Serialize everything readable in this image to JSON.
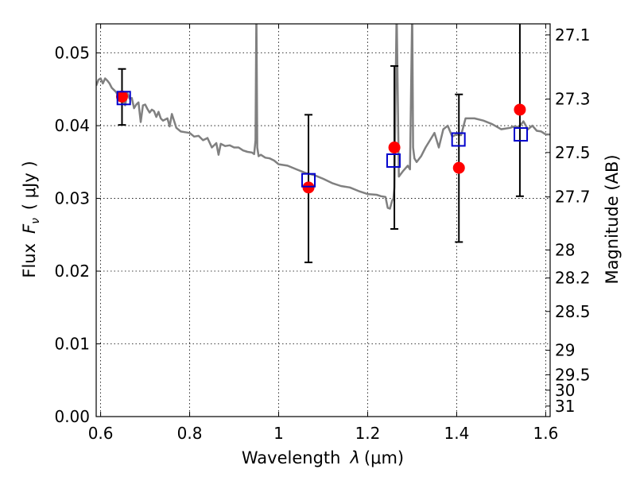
{
  "chart_data": {
    "type": "scatter",
    "xlabel": {
      "text": "Wavelength",
      "symbol": "λ",
      "unit": "(μm)"
    },
    "ylabel": {
      "text": "Flux",
      "symbol": "F",
      "subscript": "ν",
      "unit": "( μJy )"
    },
    "y2label": "Magnitude (AB)",
    "xlim": [
      0.59,
      1.61
    ],
    "ylim": [
      0.0,
      0.054
    ],
    "xticks": [
      0.6,
      0.8,
      1.0,
      1.2,
      1.4,
      1.6
    ],
    "xtick_labels": [
      "0.6",
      "0.8",
      "1",
      "1.2",
      "1.4",
      "1.6"
    ],
    "yticks": [
      0.0,
      0.01,
      0.02,
      0.03,
      0.04,
      0.05
    ],
    "ytick_labels": [
      "0.00",
      "0.01",
      "0.02",
      "0.03",
      "0.04",
      "0.05"
    ],
    "y2ticks": [
      "27.1",
      "27.3",
      "27.5",
      "27.7",
      "28",
      "28.2",
      "28.5",
      "29",
      "29.5",
      "30",
      "31"
    ],
    "grid": true,
    "colors": {
      "model": "#808080",
      "observed": "#ff0000",
      "synthetic": "#0000cc",
      "errorbar": "#000000"
    },
    "series": [
      {
        "kind": "line",
        "x": [
          0.59,
          0.595,
          0.6,
          0.605,
          0.61,
          0.615,
          0.62,
          0.625,
          0.63,
          0.635,
          0.64,
          0.645,
          0.65,
          0.655,
          0.66,
          0.665,
          0.67,
          0.675,
          0.68,
          0.685,
          0.69,
          0.695,
          0.7,
          0.705,
          0.71,
          0.715,
          0.72,
          0.725,
          0.73,
          0.735,
          0.74,
          0.75,
          0.755,
          0.76,
          0.77,
          0.78,
          0.79,
          0.8,
          0.81,
          0.82,
          0.83,
          0.84,
          0.85,
          0.86,
          0.865,
          0.87,
          0.88,
          0.89,
          0.9,
          0.91,
          0.92,
          0.93,
          0.94,
          0.945,
          0.948,
          0.95,
          0.952,
          0.955,
          0.96,
          0.97,
          0.98,
          0.99,
          1.0,
          1.02,
          1.04,
          1.06,
          1.08,
          1.1,
          1.12,
          1.14,
          1.16,
          1.18,
          1.2,
          1.22,
          1.23,
          1.24,
          1.245,
          1.25,
          1.255,
          1.258,
          1.26,
          1.265,
          1.27,
          1.28,
          1.29,
          1.295,
          1.3,
          1.302,
          1.305,
          1.31,
          1.32,
          1.33,
          1.34,
          1.35,
          1.36,
          1.37,
          1.38,
          1.39,
          1.4,
          1.41,
          1.42,
          1.44,
          1.46,
          1.48,
          1.5,
          1.52,
          1.53,
          1.54,
          1.55,
          1.56,
          1.57,
          1.58,
          1.59,
          1.6,
          1.61
        ],
        "y": [
          0.0455,
          0.0463,
          0.0465,
          0.0458,
          0.0465,
          0.0462,
          0.0458,
          0.0452,
          0.0449,
          0.0446,
          0.044,
          0.0438,
          0.0436,
          0.0428,
          0.0445,
          0.0437,
          0.0438,
          0.0424,
          0.0429,
          0.0432,
          0.0405,
          0.0428,
          0.0429,
          0.0423,
          0.0418,
          0.0422,
          0.042,
          0.0412,
          0.0419,
          0.041,
          0.0407,
          0.041,
          0.0399,
          0.0416,
          0.0397,
          0.0392,
          0.0391,
          0.039,
          0.0385,
          0.0386,
          0.038,
          0.0383,
          0.037,
          0.0376,
          0.036,
          0.0375,
          0.0372,
          0.0373,
          0.037,
          0.037,
          0.0366,
          0.0364,
          0.0363,
          0.0361,
          0.038,
          0.056,
          0.037,
          0.0358,
          0.036,
          0.0356,
          0.0355,
          0.0352,
          0.0347,
          0.0345,
          0.034,
          0.0335,
          0.0332,
          0.0327,
          0.0321,
          0.0317,
          0.0315,
          0.031,
          0.0306,
          0.0305,
          0.0303,
          0.0302,
          0.0287,
          0.0286,
          0.0297,
          0.03,
          0.0315,
          0.056,
          0.033,
          0.0338,
          0.0345,
          0.034,
          0.056,
          0.037,
          0.0355,
          0.035,
          0.0358,
          0.037,
          0.038,
          0.039,
          0.037,
          0.0395,
          0.04,
          0.0385,
          0.0388,
          0.0387,
          0.041,
          0.041,
          0.0407,
          0.0402,
          0.0395,
          0.0397,
          0.0399,
          0.0398,
          0.0406,
          0.0395,
          0.04,
          0.0393,
          0.0392,
          0.0388,
          0.0388
        ]
      },
      {
        "kind": "points",
        "x": [
          0.648,
          1.067,
          1.26,
          1.405,
          1.542
        ],
        "y": [
          0.044,
          0.0315,
          0.037,
          0.0342,
          0.0422
        ],
        "yerr_low": [
          0.0401,
          0.0212,
          0.0258,
          0.024,
          0.0303
        ],
        "yerr_high": [
          0.0478,
          0.0415,
          0.0482,
          0.0443,
          0.056
        ]
      },
      {
        "kind": "squares",
        "x": [
          0.652,
          1.067,
          1.258,
          1.404,
          1.544
        ],
        "y": [
          0.0438,
          0.0325,
          0.0352,
          0.0381,
          0.0388
        ]
      }
    ]
  }
}
